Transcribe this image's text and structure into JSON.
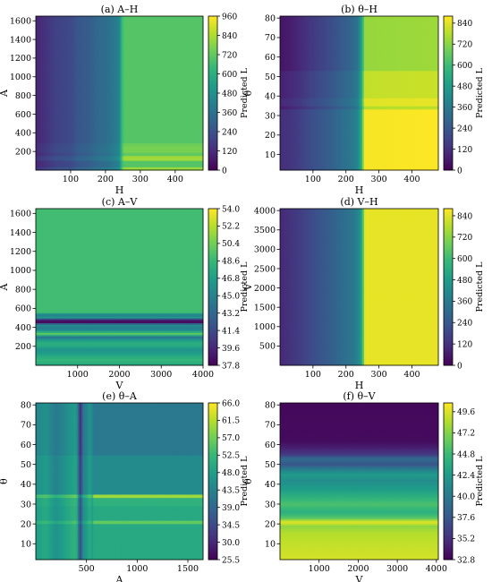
{
  "chart_data": [
    {
      "type": "heatmap",
      "title": "(a) A–H",
      "xlabel": "H",
      "ylabel": "A",
      "colorbar_label": "Predicted L",
      "xlim": [
        0,
        480
      ],
      "ylim": [
        0,
        1650
      ],
      "xticks": [
        100,
        200,
        300,
        400
      ],
      "yticks": [
        200,
        400,
        600,
        800,
        1000,
        1200,
        1400,
        1600
      ],
      "clim": [
        0,
        960
      ],
      "cticks": [
        0,
        120,
        240,
        360,
        480,
        600,
        720,
        840,
        960
      ],
      "x_profile": [
        [
          0,
          100
        ],
        [
          20,
          130
        ],
        [
          40,
          160
        ],
        [
          60,
          190
        ],
        [
          80,
          200
        ],
        [
          100,
          210
        ],
        [
          120,
          260
        ],
        [
          140,
          270
        ],
        [
          160,
          290
        ],
        [
          180,
          330
        ],
        [
          200,
          340
        ],
        [
          225,
          390
        ],
        [
          240,
          430
        ],
        [
          248,
          660
        ],
        [
          255,
          700
        ],
        [
          480,
          700
        ]
      ],
      "y_bands": [
        [
          0,
          40,
          110
        ],
        [
          40,
          100,
          0
        ],
        [
          100,
          150,
          120
        ],
        [
          150,
          190,
          20
        ],
        [
          190,
          250,
          60
        ],
        [
          250,
          300,
          40
        ],
        [
          300,
          350,
          0
        ],
        [
          350,
          410,
          0
        ],
        [
          410,
          1650,
          0
        ]
      ],
      "note_bands_apply_right_of": 250
    },
    {
      "type": "heatmap",
      "title": "(b) θ–H",
      "xlabel": "H",
      "ylabel": "θ",
      "colorbar_label": "Predicted L",
      "xlim": [
        0,
        480
      ],
      "ylim": [
        2,
        81
      ],
      "xticks": [
        100,
        200,
        300,
        400
      ],
      "yticks": [
        10,
        20,
        30,
        40,
        50,
        60,
        70,
        80
      ],
      "clim": [
        0,
        880
      ],
      "cticks": [
        0,
        120,
        240,
        360,
        480,
        600,
        720,
        840
      ],
      "x_profile": [
        [
          0,
          100
        ],
        [
          30,
          120
        ],
        [
          60,
          150
        ],
        [
          90,
          190
        ],
        [
          120,
          220
        ],
        [
          150,
          250
        ],
        [
          180,
          290
        ],
        [
          210,
          330
        ],
        [
          235,
          380
        ],
        [
          248,
          560
        ],
        [
          256,
          840
        ],
        [
          480,
          850
        ]
      ],
      "y_bands": [
        [
          2,
          33,
          30
        ],
        [
          33,
          35,
          -60
        ],
        [
          35,
          39,
          0
        ],
        [
          39,
          53,
          -40
        ],
        [
          53,
          81,
          -100
        ]
      ]
    },
    {
      "type": "heatmap",
      "title": "(c) A–V",
      "xlabel": "V",
      "ylabel": "A",
      "colorbar_label": "Predicted L",
      "xlim": [
        0,
        4000
      ],
      "ylim": [
        0,
        1650
      ],
      "xticks": [
        1000,
        2000,
        3000,
        4000
      ],
      "yticks": [
        200,
        400,
        600,
        800,
        1000,
        1200,
        1400,
        1600
      ],
      "clim": [
        37.8,
        54.0
      ],
      "cticks": [
        37.8,
        39.6,
        41.4,
        43.2,
        45.0,
        46.8,
        48.6,
        50.4,
        52.2,
        54.0
      ],
      "y_profile": [
        [
          0,
          47.5
        ],
        [
          60,
          48.5
        ],
        [
          120,
          47.0
        ],
        [
          170,
          46.0
        ],
        [
          200,
          47.5
        ],
        [
          240,
          48.0
        ],
        [
          270,
          46.5
        ],
        [
          300,
          44.0
        ],
        [
          330,
          50.5
        ],
        [
          360,
          47.0
        ],
        [
          390,
          44.5
        ],
        [
          430,
          46.0
        ],
        [
          450,
          38.5
        ],
        [
          470,
          38.0
        ],
        [
          490,
          42.0
        ],
        [
          510,
          47.5
        ],
        [
          530,
          44.0
        ],
        [
          560,
          49.0
        ],
        [
          600,
          49.0
        ],
        [
          1650,
          49.0
        ]
      ]
    },
    {
      "type": "heatmap",
      "title": "(d) V–H",
      "xlabel": "H",
      "ylabel": "V",
      "colorbar_label": "Predicted L",
      "xlim": [
        0,
        480
      ],
      "ylim": [
        0,
        4050
      ],
      "xticks": [
        100,
        200,
        300,
        400
      ],
      "yticks": [
        500,
        1000,
        1500,
        2000,
        2500,
        3000,
        3500,
        4000
      ],
      "clim": [
        0,
        880
      ],
      "cticks": [
        0,
        120,
        240,
        360,
        480,
        600,
        720,
        840
      ],
      "x_profile": [
        [
          0,
          100
        ],
        [
          40,
          140
        ],
        [
          80,
          180
        ],
        [
          120,
          230
        ],
        [
          160,
          270
        ],
        [
          200,
          320
        ],
        [
          230,
          370
        ],
        [
          245,
          460
        ],
        [
          252,
          640
        ],
        [
          258,
          850
        ],
        [
          480,
          850
        ]
      ]
    },
    {
      "type": "heatmap",
      "title": "(e) θ–A",
      "xlabel": "A",
      "ylabel": "θ",
      "colorbar_label": "Predicted L",
      "xlim": [
        0,
        1650
      ],
      "ylim": [
        2,
        81
      ],
      "xticks": [
        500,
        1000,
        1500
      ],
      "yticks": [
        10,
        20,
        30,
        40,
        50,
        60,
        70,
        80
      ],
      "clim": [
        25.5,
        66.0
      ],
      "cticks": [
        25.5,
        30.0,
        34.5,
        39.0,
        43.5,
        48.0,
        52.5,
        57.0,
        61.5,
        66.0
      ],
      "x_profile": [
        [
          0,
          0
        ],
        [
          100,
          2
        ],
        [
          200,
          -2
        ],
        [
          300,
          1
        ],
        [
          400,
          4
        ],
        [
          440,
          -14
        ],
        [
          470,
          -2
        ],
        [
          500,
          -1
        ],
        [
          530,
          3
        ],
        [
          560,
          0
        ],
        [
          1650,
          0
        ]
      ],
      "y_bands": [
        [
          2,
          20,
          50.0
        ],
        [
          20,
          22,
          56.0
        ],
        [
          22,
          29,
          50.0
        ],
        [
          29,
          33,
          51.5
        ],
        [
          33,
          35,
          60.0
        ],
        [
          35,
          50,
          45.0
        ],
        [
          50,
          55,
          45.0
        ],
        [
          55,
          81,
          42.0
        ]
      ]
    },
    {
      "type": "heatmap",
      "title": "(f) θ–V",
      "xlabel": "V",
      "ylabel": "θ",
      "colorbar_label": "Predicted L",
      "xlim": [
        0,
        4050
      ],
      "ylim": [
        2,
        81
      ],
      "xticks": [
        1000,
        2000,
        3000,
        4000
      ],
      "yticks": [
        10,
        20,
        30,
        40,
        50,
        60,
        70,
        80
      ],
      "clim": [
        32.8,
        50.6
      ],
      "cticks": [
        32.8,
        35.2,
        37.6,
        40.0,
        42.4,
        44.8,
        47.2,
        49.6
      ],
      "y_profile": [
        [
          2,
          49.5
        ],
        [
          10,
          49.0
        ],
        [
          16,
          48.5
        ],
        [
          19,
          47.5
        ],
        [
          21,
          50.0
        ],
        [
          23,
          46.0
        ],
        [
          26,
          44.0
        ],
        [
          30,
          45.5
        ],
        [
          34,
          44.0
        ],
        [
          38,
          42.5
        ],
        [
          42,
          41.5
        ],
        [
          45,
          42.5
        ],
        [
          48,
          40.0
        ],
        [
          50,
          37.5
        ],
        [
          53,
          39.0
        ],
        [
          55,
          36.0
        ],
        [
          58,
          34.5
        ],
        [
          62,
          33.3
        ],
        [
          81,
          33.2
        ]
      ]
    }
  ]
}
